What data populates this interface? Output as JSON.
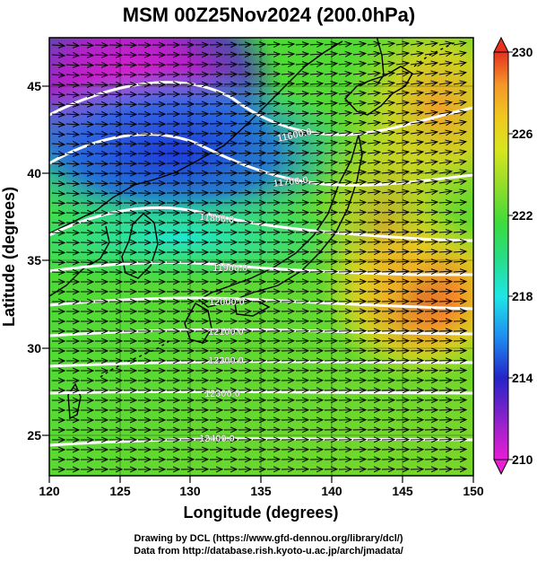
{
  "title": "MSM 00Z25Nov2024 (200.0hPa)",
  "xlabel": "Longitude (degrees)",
  "ylabel": "Latitude  (degrees)",
  "x_ticks": [
    "120",
    "125",
    "130",
    "135",
    "140",
    "145",
    "150"
  ],
  "y_ticks": [
    "25",
    "30",
    "35",
    "40",
    "45"
  ],
  "colorbar_ticks": [
    "230",
    "226",
    "222",
    "218",
    "214",
    "210"
  ],
  "contour_labels": [
    "11600.0",
    "11700.0",
    "11800.0",
    "11900.0",
    "12000.0",
    "12100.0",
    "12200.0",
    "12300.0",
    "12400.0"
  ],
  "credits": {
    "line1": "Drawing by DCL (https://www.gfd-dennou.org/library/dcl/)",
    "line2": "Data from http://database.rish.kyoto-u.ac.jp/arch/jmadata/"
  },
  "colorbar_colors": [
    "#e91ed6",
    "#7a26c8",
    "#2424c8",
    "#1e8cf0",
    "#1ee6e6",
    "#28dc82",
    "#3cdc3c",
    "#9bdc28",
    "#d7e61e",
    "#f0c81e",
    "#f59628",
    "#f05a23",
    "#e6321e"
  ],
  "chart_data": {
    "type": "heatmap",
    "title": "MSM 00Z25Nov2024 (200.0hPa)",
    "xlabel": "Longitude (degrees)",
    "ylabel": "Latitude  (degrees)",
    "xlim": [
      120,
      150
    ],
    "ylim": [
      22.5,
      47.5
    ],
    "colorbar_range": [
      210,
      230
    ],
    "colorbar_tick_values": [
      210,
      214,
      218,
      222,
      226,
      230
    ],
    "contours": [
      {
        "label": "11600.0",
        "lon": 137.5,
        "lat": 43.0
      },
      {
        "label": "11700.0",
        "lon": 134.5,
        "lat": 40.5
      },
      {
        "label": "11800.0",
        "lon": 129.5,
        "lat": 37.5
      },
      {
        "label": "11900.0",
        "lon": 133.0,
        "lat": 35.0
      },
      {
        "label": "12000.0",
        "lon": 132.5,
        "lat": 33.5
      },
      {
        "label": "12100.0",
        "lon": 132.0,
        "lat": 31.5
      },
      {
        "label": "12200.0",
        "lon": 132.0,
        "lat": 30.0
      },
      {
        "label": "12300.0",
        "lon": 131.0,
        "lat": 28.0
      },
      {
        "label": "12400.0",
        "lon": 131.0,
        "lat": 25.0
      }
    ]
  }
}
